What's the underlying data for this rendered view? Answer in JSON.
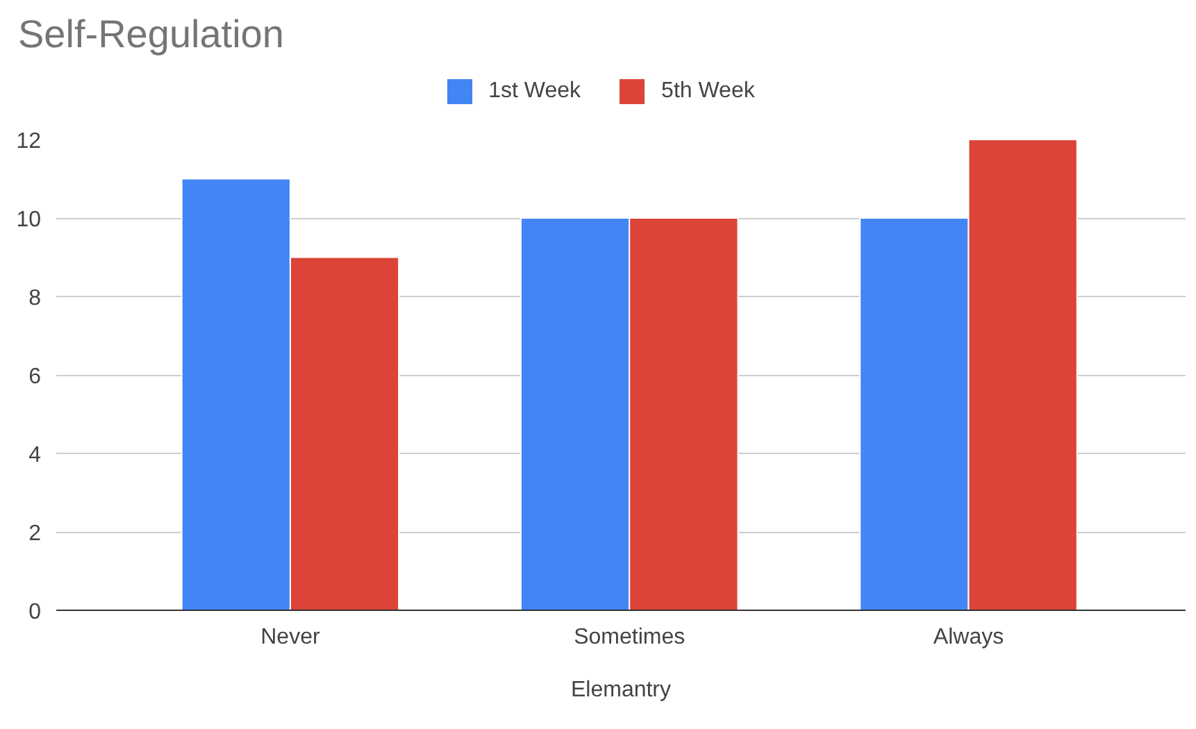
{
  "chart_data": {
    "type": "bar",
    "title": "Self-Regulation",
    "xlabel": "Elemantry",
    "categories": [
      "Never",
      "Sometimes",
      "Always"
    ],
    "series": [
      {
        "name": "1st Week",
        "color": "#4285f4",
        "values": [
          11,
          10,
          10
        ]
      },
      {
        "name": "5th Week",
        "color": "#db4437",
        "values": [
          9,
          10,
          12
        ]
      }
    ],
    "ylim": [
      0,
      12
    ],
    "yticks": [
      0,
      2,
      4,
      6,
      8,
      10,
      12
    ],
    "grid": "y",
    "legend": "top"
  }
}
